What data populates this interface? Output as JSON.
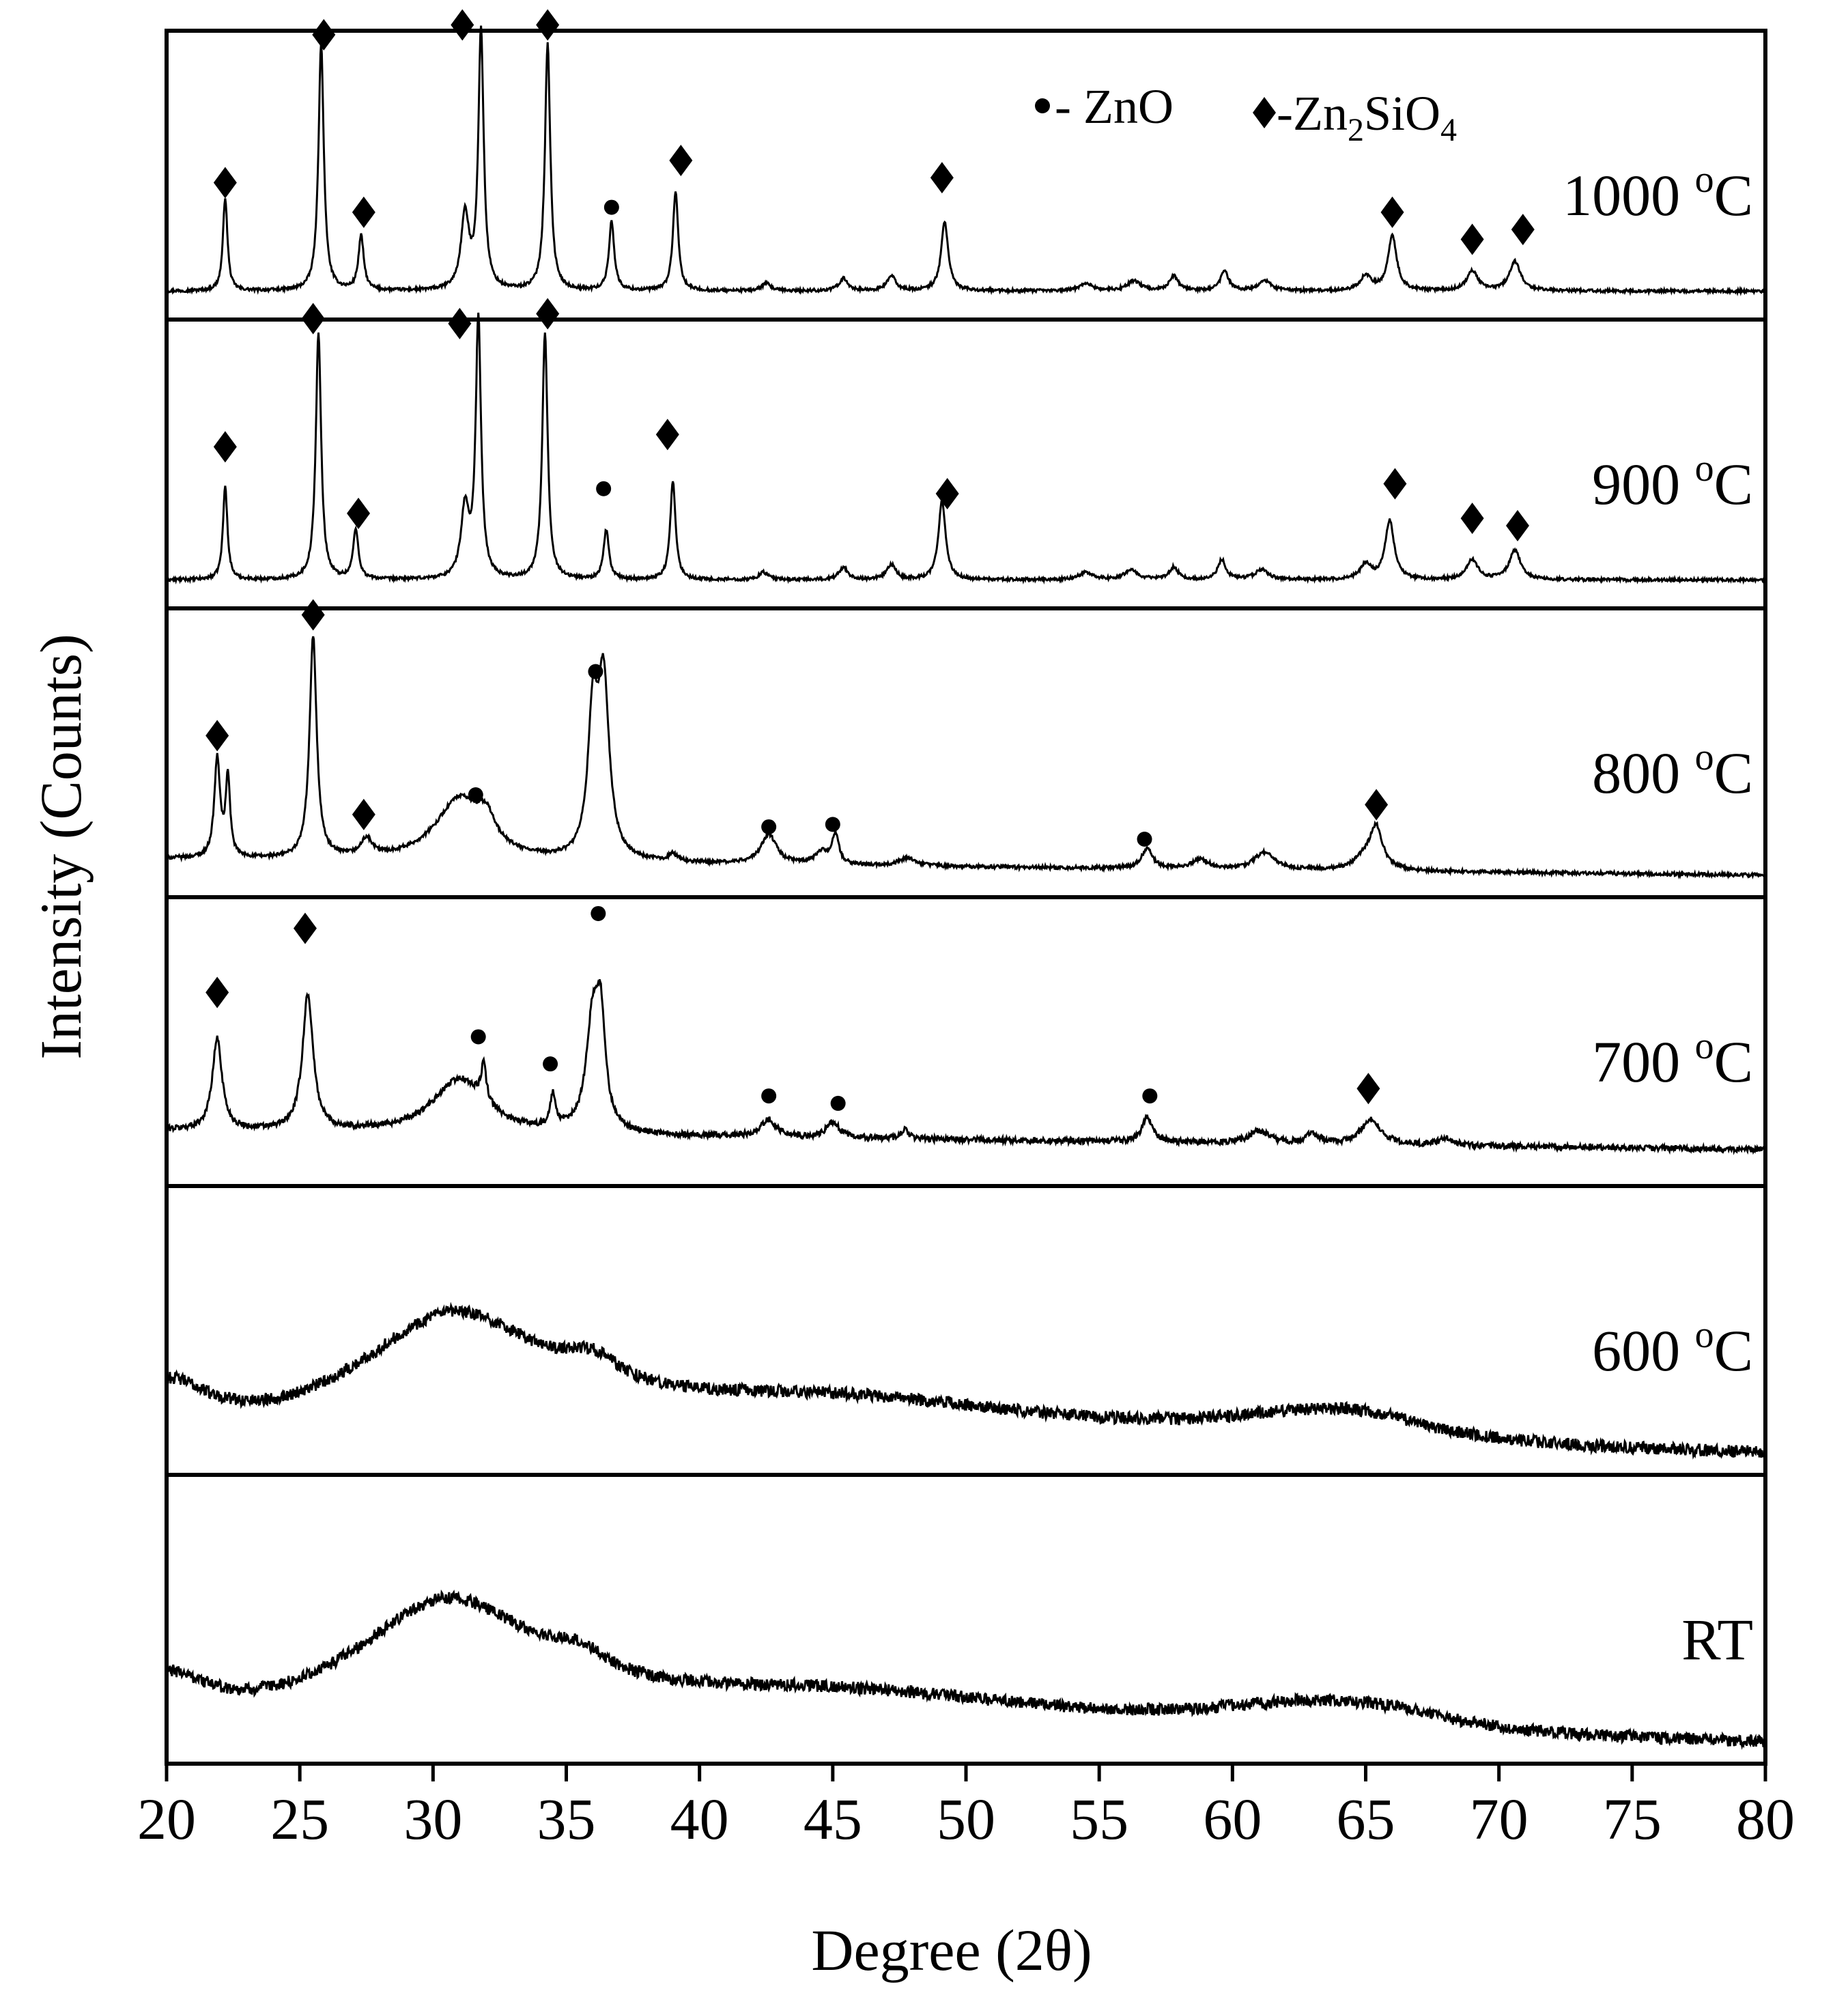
{
  "chart_data": {
    "type": "line",
    "subtype": "stacked XRD patterns",
    "xlabel": "Degree (2θ)",
    "ylabel": "Intensity (Counts)",
    "xlim": [
      20,
      80
    ],
    "xticks": [
      20,
      25,
      30,
      35,
      40,
      45,
      50,
      55,
      60,
      65,
      70,
      75,
      80
    ],
    "legend": {
      "placement": "top-right of top panel",
      "entries": [
        {
          "marker": "circle",
          "text": "- ZnO",
          "phase": "ZnO"
        },
        {
          "marker": "diamond",
          "prefix": "-Zn",
          "sub1": "2",
          "mid": "SiO",
          "sub2": "4",
          "phase": "Zn2SiO4"
        }
      ]
    },
    "panels": [
      {
        "label": "1000 °C",
        "label_main": "1000 ",
        "label_sup": "o",
        "label_unit": "C",
        "baseline": 0.06,
        "slope": 0,
        "noise": 0.006,
        "peaks": [
          [
            22.2,
            0.38,
            0.1
          ],
          [
            25.8,
            1.0,
            0.12
          ],
          [
            27.3,
            0.22,
            0.12
          ],
          [
            31.2,
            0.3,
            0.18
          ],
          [
            31.8,
            1.05,
            0.12
          ],
          [
            34.3,
            1.0,
            0.12
          ],
          [
            36.7,
            0.28,
            0.12
          ],
          [
            39.1,
            0.4,
            0.12
          ],
          [
            42.5,
            0.03,
            0.2
          ],
          [
            45.4,
            0.05,
            0.2
          ],
          [
            47.2,
            0.06,
            0.2
          ],
          [
            49.2,
            0.28,
            0.16
          ],
          [
            54.5,
            0.03,
            0.3
          ],
          [
            56.3,
            0.04,
            0.3
          ],
          [
            57.8,
            0.06,
            0.2
          ],
          [
            59.7,
            0.08,
            0.18
          ],
          [
            61.2,
            0.04,
            0.3
          ],
          [
            65.0,
            0.06,
            0.25
          ],
          [
            66.0,
            0.22,
            0.2
          ],
          [
            69.0,
            0.08,
            0.25
          ],
          [
            70.6,
            0.12,
            0.25
          ]
        ],
        "markers": [
          {
            "shape": "diamond",
            "x": 22.2,
            "level": 0.5
          },
          {
            "shape": "diamond",
            "x": 25.9,
            "level": 1.1
          },
          {
            "shape": "diamond",
            "x": 27.4,
            "level": 0.38
          },
          {
            "shape": "diamond",
            "x": 31.1,
            "level": 1.14
          },
          {
            "shape": "diamond",
            "x": 34.3,
            "level": 1.14
          },
          {
            "shape": "circle",
            "x": 36.7,
            "level": 0.4
          },
          {
            "shape": "diamond",
            "x": 39.3,
            "level": 0.59
          },
          {
            "shape": "diamond",
            "x": 49.1,
            "level": 0.52
          },
          {
            "shape": "diamond",
            "x": 66.0,
            "level": 0.38
          },
          {
            "shape": "diamond",
            "x": 69.0,
            "level": 0.27
          },
          {
            "shape": "diamond",
            "x": 70.9,
            "level": 0.31
          }
        ]
      },
      {
        "label": "900 °C",
        "label_main": "900 ",
        "label_sup": "o",
        "label_unit": "C",
        "baseline": 0.06,
        "slope": 0,
        "noise": 0.006,
        "peaks": [
          [
            22.2,
            0.38,
            0.1
          ],
          [
            25.7,
            1.0,
            0.12
          ],
          [
            27.1,
            0.2,
            0.12
          ],
          [
            31.2,
            0.28,
            0.18
          ],
          [
            31.7,
            1.05,
            0.12
          ],
          [
            34.2,
            1.0,
            0.12
          ],
          [
            36.5,
            0.2,
            0.12
          ],
          [
            39.0,
            0.4,
            0.12
          ],
          [
            42.4,
            0.03,
            0.2
          ],
          [
            45.4,
            0.05,
            0.2
          ],
          [
            47.2,
            0.06,
            0.2
          ],
          [
            49.1,
            0.32,
            0.16
          ],
          [
            54.5,
            0.03,
            0.3
          ],
          [
            56.2,
            0.04,
            0.3
          ],
          [
            57.8,
            0.05,
            0.2
          ],
          [
            59.6,
            0.08,
            0.18
          ],
          [
            61.1,
            0.04,
            0.3
          ],
          [
            65.0,
            0.06,
            0.25
          ],
          [
            65.9,
            0.24,
            0.2
          ],
          [
            69.0,
            0.08,
            0.25
          ],
          [
            70.6,
            0.12,
            0.25
          ]
        ],
        "markers": [
          {
            "shape": "diamond",
            "x": 22.2,
            "level": 0.6
          },
          {
            "shape": "diamond",
            "x": 25.5,
            "level": 1.12
          },
          {
            "shape": "diamond",
            "x": 27.2,
            "level": 0.33
          },
          {
            "shape": "diamond",
            "x": 31.0,
            "level": 1.1
          },
          {
            "shape": "diamond",
            "x": 34.3,
            "level": 1.14
          },
          {
            "shape": "circle",
            "x": 36.4,
            "level": 0.43
          },
          {
            "shape": "diamond",
            "x": 38.8,
            "level": 0.65
          },
          {
            "shape": "diamond",
            "x": 49.3,
            "level": 0.41
          },
          {
            "shape": "diamond",
            "x": 66.1,
            "level": 0.45
          },
          {
            "shape": "diamond",
            "x": 69.0,
            "level": 0.31
          },
          {
            "shape": "diamond",
            "x": 70.7,
            "level": 0.28
          }
        ]
      },
      {
        "label": "800 °C",
        "label_main": "800 ",
        "label_sup": "o",
        "label_unit": "C",
        "baseline": 0.1,
        "slope": 0.0011,
        "noise": 0.007,
        "peaks": [
          [
            21.9,
            0.4,
            0.13
          ],
          [
            22.3,
            0.32,
            0.1
          ],
          [
            25.5,
            0.9,
            0.16
          ],
          [
            27.5,
            0.07,
            0.25
          ],
          [
            31.0,
            0.25,
            1.1
          ],
          [
            32.0,
            0.1,
            0.4
          ],
          [
            36.0,
            0.55,
            0.22
          ],
          [
            36.4,
            0.7,
            0.25
          ],
          [
            39.0,
            0.03,
            0.2
          ],
          [
            42.6,
            0.12,
            0.35
          ],
          [
            44.6,
            0.05,
            0.3
          ],
          [
            45.1,
            0.12,
            0.15
          ],
          [
            47.8,
            0.03,
            0.4
          ],
          [
            56.8,
            0.08,
            0.25
          ],
          [
            58.8,
            0.04,
            0.35
          ],
          [
            61.2,
            0.07,
            0.45
          ],
          [
            65.4,
            0.16,
            0.28
          ],
          [
            65.0,
            0.05,
            0.5
          ]
        ],
        "markers": [
          {
            "shape": "diamond",
            "x": 21.9,
            "level": 0.6
          },
          {
            "shape": "diamond",
            "x": 25.5,
            "level": 1.09
          },
          {
            "shape": "diamond",
            "x": 27.4,
            "level": 0.28
          },
          {
            "shape": "circle",
            "x": 31.6,
            "level": 0.36
          },
          {
            "shape": "circle",
            "x": 36.1,
            "level": 0.86
          },
          {
            "shape": "circle",
            "x": 42.6,
            "level": 0.23
          },
          {
            "shape": "circle",
            "x": 45.0,
            "level": 0.24
          },
          {
            "shape": "circle",
            "x": 56.7,
            "level": 0.18
          },
          {
            "shape": "diamond",
            "x": 65.4,
            "level": 0.32
          }
        ]
      },
      {
        "label": "700 °C",
        "label_main": "700 ",
        "label_sup": "o",
        "label_unit": "C",
        "baseline": 0.17,
        "slope": 0.0013,
        "noise": 0.012,
        "peaks": [
          [
            21.9,
            0.37,
            0.22
          ],
          [
            25.3,
            0.55,
            0.24
          ],
          [
            31.0,
            0.22,
            1.2
          ],
          [
            31.9,
            0.15,
            0.12
          ],
          [
            34.5,
            0.13,
            0.12
          ],
          [
            36.0,
            0.45,
            0.3
          ],
          [
            36.3,
            0.37,
            0.2
          ],
          [
            42.6,
            0.07,
            0.35
          ],
          [
            45.0,
            0.06,
            0.3
          ],
          [
            47.7,
            0.04,
            0.15
          ],
          [
            56.8,
            0.1,
            0.22
          ],
          [
            61.0,
            0.05,
            0.45
          ],
          [
            63.0,
            0.04,
            0.3
          ],
          [
            65.2,
            0.1,
            0.45
          ],
          [
            68.0,
            0.03,
            0.3
          ]
        ],
        "markers": [
          {
            "shape": "diamond",
            "x": 21.9,
            "level": 0.73
          },
          {
            "shape": "diamond",
            "x": 25.2,
            "level": 0.99
          },
          {
            "shape": "circle",
            "x": 31.7,
            "level": 0.55
          },
          {
            "shape": "circle",
            "x": 34.4,
            "level": 0.44
          },
          {
            "shape": "circle",
            "x": 36.2,
            "level": 1.05
          },
          {
            "shape": "circle",
            "x": 42.6,
            "level": 0.31
          },
          {
            "shape": "circle",
            "x": 45.2,
            "level": 0.28
          },
          {
            "shape": "circle",
            "x": 56.9,
            "level": 0.31
          },
          {
            "shape": "diamond",
            "x": 65.1,
            "level": 0.34
          }
        ]
      },
      {
        "label": "600 °C",
        "label_main": "600 ",
        "label_sup": "o",
        "label_unit": "C",
        "baseline": 0.0,
        "slope": 0,
        "noise": 0.025,
        "peaks": [
          [
            20,
            0.22,
            2.0
          ],
          [
            30.7,
            0.5,
            4.5
          ],
          [
            36.0,
            0.1,
            1.2
          ],
          [
            45,
            0.22,
            12
          ],
          [
            63,
            0.1,
            5
          ],
          [
            65,
            0.05,
            3
          ],
          [
            80,
            0.0,
            1
          ]
        ],
        "markers": []
      },
      {
        "label": "RT",
        "label_main": "RT",
        "label_sup": "",
        "label_unit": "",
        "baseline": 0.0,
        "slope": 0,
        "noise": 0.025,
        "peaks": [
          [
            20,
            0.2,
            2.0
          ],
          [
            30.5,
            0.52,
            4.5
          ],
          [
            35.5,
            0.08,
            1.2
          ],
          [
            45,
            0.2,
            12
          ],
          [
            63,
            0.11,
            5
          ],
          [
            66,
            0.04,
            3
          ]
        ],
        "markers": []
      }
    ]
  }
}
